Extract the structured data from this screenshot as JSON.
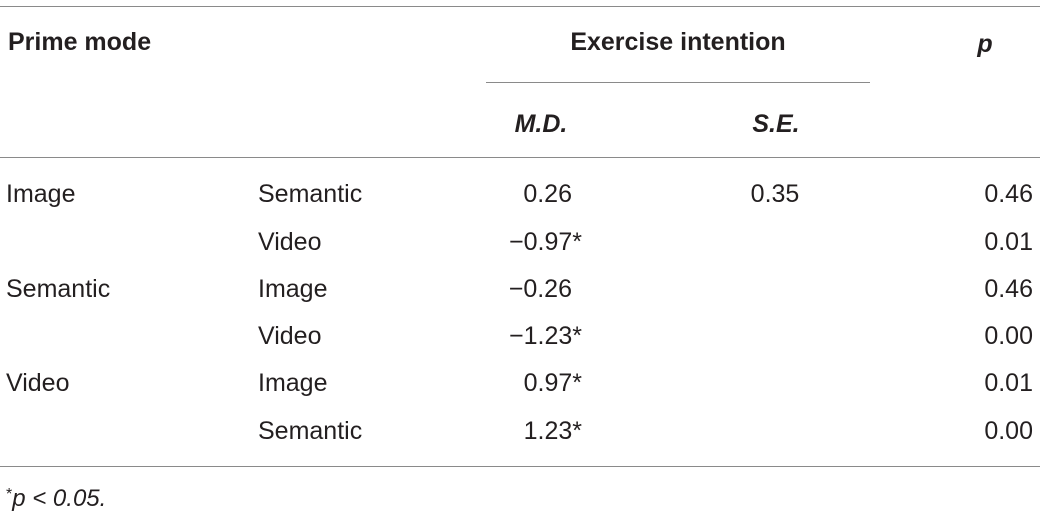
{
  "header": {
    "col_prime_mode": "Prime mode",
    "col_group": "Exercise intention",
    "col_p": "p",
    "sub_md": "M.D.",
    "sub_se": "S.E."
  },
  "rows": [
    {
      "mode": "Image",
      "compare": "Semantic",
      "md": "0.26",
      "se": "0.35",
      "p": "0.46"
    },
    {
      "mode": "",
      "compare": "Video",
      "md": "−0.97*",
      "se": "",
      "p": "0.01"
    },
    {
      "mode": "Semantic",
      "compare": "Image",
      "md": "−0.26",
      "se": "",
      "p": "0.46"
    },
    {
      "mode": "",
      "compare": "Video",
      "md": "−1.23*",
      "se": "",
      "p": "0.00"
    },
    {
      "mode": "Video",
      "compare": "Image",
      "md": "0.97*",
      "se": "",
      "p": "0.01"
    },
    {
      "mode": "",
      "compare": "Semantic",
      "md": "1.23*",
      "se": "",
      "p": "0.00"
    }
  ],
  "footnote": {
    "marker": "*",
    "text": "p < 0.05."
  }
}
